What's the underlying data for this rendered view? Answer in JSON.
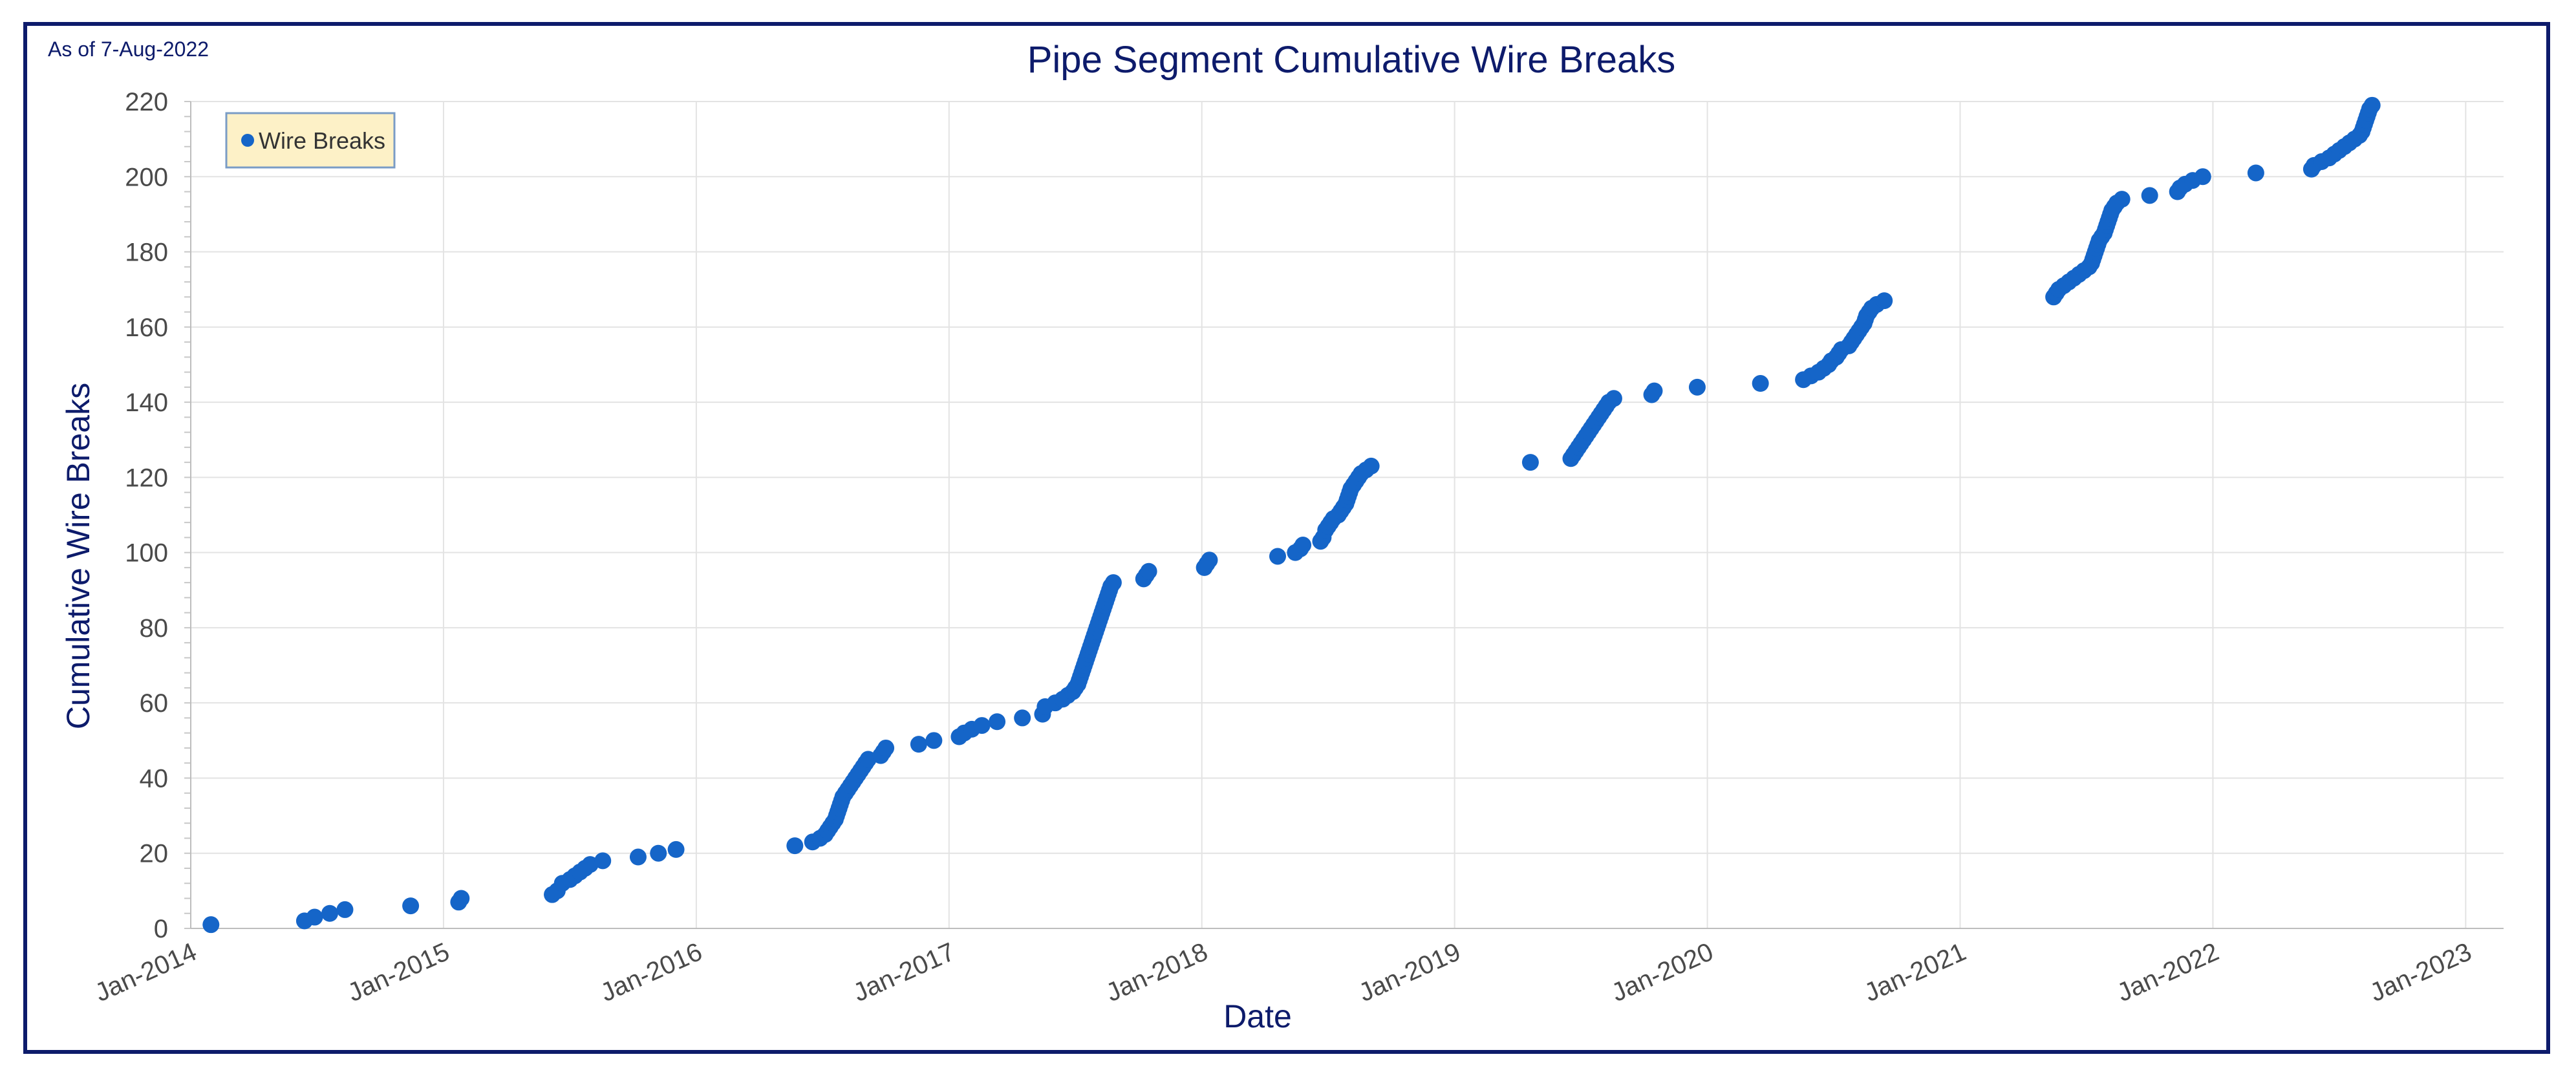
{
  "annotation": "As of 7-Aug-2022",
  "colors": {
    "frame": "#0d1b6b",
    "marker": "#1565c8",
    "grid": "#e3e3e3",
    "legend_bg": "#fdf1c7",
    "legend_border": "#7a9cc6"
  },
  "chart_data": {
    "type": "scatter",
    "title": "Pipe Segment Cumulative Wire Breaks",
    "xlabel": "Date",
    "ylabel": "Cumulative Wire Breaks",
    "xlim": [
      2014.0,
      2023.15
    ],
    "ylim": [
      0,
      220
    ],
    "x_unit": "decimal year",
    "xticks": [
      {
        "value": 2014,
        "label": "Jan-2014"
      },
      {
        "value": 2015,
        "label": "Jan-2015"
      },
      {
        "value": 2016,
        "label": "Jan-2016"
      },
      {
        "value": 2017,
        "label": "Jan-2017"
      },
      {
        "value": 2018,
        "label": "Jan-2018"
      },
      {
        "value": 2019,
        "label": "Jan-2019"
      },
      {
        "value": 2020,
        "label": "Jan-2020"
      },
      {
        "value": 2021,
        "label": "Jan-2021"
      },
      {
        "value": 2022,
        "label": "Jan-2022"
      },
      {
        "value": 2023,
        "label": "Jan-2023"
      }
    ],
    "yticks": [
      0,
      20,
      40,
      60,
      80,
      100,
      120,
      140,
      160,
      180,
      200,
      220
    ],
    "legend": {
      "label": "Wire Breaks",
      "position": "top-left"
    },
    "series": [
      {
        "name": "Wire Breaks",
        "points": [
          [
            2014.08,
            1
          ],
          [
            2014.45,
            2
          ],
          [
            2014.49,
            3
          ],
          [
            2014.55,
            4
          ],
          [
            2014.61,
            5
          ],
          [
            2014.87,
            6
          ],
          [
            2015.06,
            7
          ],
          [
            2015.07,
            8
          ],
          [
            2015.43,
            9
          ],
          [
            2015.45,
            10
          ],
          [
            2015.47,
            12
          ],
          [
            2015.5,
            13
          ],
          [
            2015.52,
            14
          ],
          [
            2015.54,
            15
          ],
          [
            2015.56,
            16
          ],
          [
            2015.58,
            17
          ],
          [
            2015.63,
            18
          ],
          [
            2015.77,
            19
          ],
          [
            2015.85,
            20
          ],
          [
            2015.92,
            21
          ],
          [
            2016.39,
            22
          ],
          [
            2016.46,
            23
          ],
          [
            2016.49,
            24
          ],
          [
            2016.51,
            25
          ],
          [
            2016.52,
            26
          ],
          [
            2016.53,
            27
          ],
          [
            2016.54,
            28
          ],
          [
            2016.55,
            29
          ],
          [
            2016.555,
            30
          ],
          [
            2016.56,
            31
          ],
          [
            2016.565,
            32
          ],
          [
            2016.57,
            33
          ],
          [
            2016.575,
            34
          ],
          [
            2016.58,
            35
          ],
          [
            2016.59,
            36
          ],
          [
            2016.6,
            37
          ],
          [
            2016.61,
            38
          ],
          [
            2016.62,
            39
          ],
          [
            2016.63,
            40
          ],
          [
            2016.64,
            41
          ],
          [
            2016.65,
            42
          ],
          [
            2016.66,
            43
          ],
          [
            2016.67,
            44
          ],
          [
            2016.68,
            45
          ],
          [
            2016.73,
            46
          ],
          [
            2016.74,
            47
          ],
          [
            2016.75,
            48
          ],
          [
            2016.88,
            49
          ],
          [
            2016.94,
            50
          ],
          [
            2017.04,
            51
          ],
          [
            2017.06,
            52
          ],
          [
            2017.09,
            53
          ],
          [
            2017.13,
            54
          ],
          [
            2017.19,
            55
          ],
          [
            2017.29,
            56
          ],
          [
            2017.37,
            57
          ],
          [
            2017.38,
            59
          ],
          [
            2017.42,
            60
          ],
          [
            2017.45,
            61
          ],
          [
            2017.47,
            62
          ],
          [
            2017.49,
            63
          ],
          [
            2017.5,
            64
          ],
          [
            2017.51,
            65
          ],
          [
            2017.515,
            66
          ],
          [
            2017.52,
            67
          ],
          [
            2017.525,
            68
          ],
          [
            2017.53,
            69
          ],
          [
            2017.535,
            70
          ],
          [
            2017.54,
            71
          ],
          [
            2017.545,
            72
          ],
          [
            2017.55,
            73
          ],
          [
            2017.555,
            74
          ],
          [
            2017.56,
            75
          ],
          [
            2017.565,
            76
          ],
          [
            2017.57,
            77
          ],
          [
            2017.575,
            78
          ],
          [
            2017.58,
            79
          ],
          [
            2017.585,
            80
          ],
          [
            2017.59,
            81
          ],
          [
            2017.595,
            82
          ],
          [
            2017.6,
            83
          ],
          [
            2017.605,
            84
          ],
          [
            2017.61,
            85
          ],
          [
            2017.615,
            86
          ],
          [
            2017.62,
            87
          ],
          [
            2017.625,
            88
          ],
          [
            2017.63,
            89
          ],
          [
            2017.635,
            90
          ],
          [
            2017.64,
            91
          ],
          [
            2017.65,
            92
          ],
          [
            2017.77,
            93
          ],
          [
            2017.78,
            94
          ],
          [
            2017.79,
            95
          ],
          [
            2018.01,
            96
          ],
          [
            2018.02,
            97
          ],
          [
            2018.03,
            98
          ],
          [
            2018.3,
            99
          ],
          [
            2018.37,
            100
          ],
          [
            2018.39,
            101
          ],
          [
            2018.4,
            102
          ],
          [
            2018.47,
            103
          ],
          [
            2018.48,
            104
          ],
          [
            2018.49,
            106
          ],
          [
            2018.5,
            107
          ],
          [
            2018.51,
            108
          ],
          [
            2018.52,
            109
          ],
          [
            2018.54,
            110
          ],
          [
            2018.55,
            111
          ],
          [
            2018.56,
            112
          ],
          [
            2018.57,
            113
          ],
          [
            2018.575,
            114
          ],
          [
            2018.58,
            115
          ],
          [
            2018.585,
            116
          ],
          [
            2018.59,
            117
          ],
          [
            2018.6,
            118
          ],
          [
            2018.61,
            119
          ],
          [
            2018.62,
            120
          ],
          [
            2018.63,
            121
          ],
          [
            2018.65,
            122
          ],
          [
            2018.67,
            123
          ],
          [
            2019.3,
            124
          ],
          [
            2019.46,
            125
          ],
          [
            2019.47,
            126
          ],
          [
            2019.48,
            127
          ],
          [
            2019.49,
            128
          ],
          [
            2019.5,
            129
          ],
          [
            2019.51,
            130
          ],
          [
            2019.52,
            131
          ],
          [
            2019.53,
            132
          ],
          [
            2019.54,
            133
          ],
          [
            2019.55,
            134
          ],
          [
            2019.56,
            135
          ],
          [
            2019.57,
            136
          ],
          [
            2019.58,
            137
          ],
          [
            2019.59,
            138
          ],
          [
            2019.6,
            139
          ],
          [
            2019.61,
            140
          ],
          [
            2019.63,
            141
          ],
          [
            2019.78,
            142
          ],
          [
            2019.79,
            143
          ],
          [
            2019.96,
            144
          ],
          [
            2020.21,
            145
          ],
          [
            2020.38,
            146
          ],
          [
            2020.41,
            147
          ],
          [
            2020.44,
            148
          ],
          [
            2020.46,
            149
          ],
          [
            2020.48,
            150
          ],
          [
            2020.49,
            151
          ],
          [
            2020.51,
            152
          ],
          [
            2020.52,
            153
          ],
          [
            2020.53,
            154
          ],
          [
            2020.56,
            155
          ],
          [
            2020.57,
            156
          ],
          [
            2020.58,
            157
          ],
          [
            2020.59,
            158
          ],
          [
            2020.6,
            159
          ],
          [
            2020.61,
            160
          ],
          [
            2020.62,
            161
          ],
          [
            2020.625,
            162
          ],
          [
            2020.63,
            163
          ],
          [
            2020.64,
            164
          ],
          [
            2020.65,
            165
          ],
          [
            2020.67,
            166
          ],
          [
            2020.7,
            167
          ],
          [
            2021.37,
            168
          ],
          [
            2021.38,
            169
          ],
          [
            2021.39,
            170
          ],
          [
            2021.41,
            171
          ],
          [
            2021.43,
            172
          ],
          [
            2021.45,
            173
          ],
          [
            2021.47,
            174
          ],
          [
            2021.49,
            175
          ],
          [
            2021.51,
            176
          ],
          [
            2021.52,
            177
          ],
          [
            2021.525,
            178
          ],
          [
            2021.53,
            179
          ],
          [
            2021.535,
            180
          ],
          [
            2021.54,
            181
          ],
          [
            2021.545,
            182
          ],
          [
            2021.55,
            183
          ],
          [
            2021.56,
            184
          ],
          [
            2021.57,
            185
          ],
          [
            2021.575,
            186
          ],
          [
            2021.58,
            187
          ],
          [
            2021.585,
            188
          ],
          [
            2021.59,
            189
          ],
          [
            2021.595,
            190
          ],
          [
            2021.6,
            191
          ],
          [
            2021.61,
            192
          ],
          [
            2021.62,
            193
          ],
          [
            2021.64,
            194
          ],
          [
            2021.75,
            195
          ],
          [
            2021.86,
            196
          ],
          [
            2021.87,
            197
          ],
          [
            2021.89,
            198
          ],
          [
            2021.92,
            199
          ],
          [
            2021.96,
            200
          ],
          [
            2022.17,
            201
          ],
          [
            2022.39,
            202
          ],
          [
            2022.4,
            203
          ],
          [
            2022.43,
            204
          ],
          [
            2022.46,
            205
          ],
          [
            2022.48,
            206
          ],
          [
            2022.5,
            207
          ],
          [
            2022.52,
            208
          ],
          [
            2022.54,
            209
          ],
          [
            2022.56,
            210
          ],
          [
            2022.58,
            211
          ],
          [
            2022.59,
            212
          ],
          [
            2022.595,
            213
          ],
          [
            2022.6,
            214
          ],
          [
            2022.605,
            215
          ],
          [
            2022.61,
            216
          ],
          [
            2022.615,
            217
          ],
          [
            2022.62,
            218
          ],
          [
            2022.63,
            219
          ]
        ]
      }
    ]
  }
}
